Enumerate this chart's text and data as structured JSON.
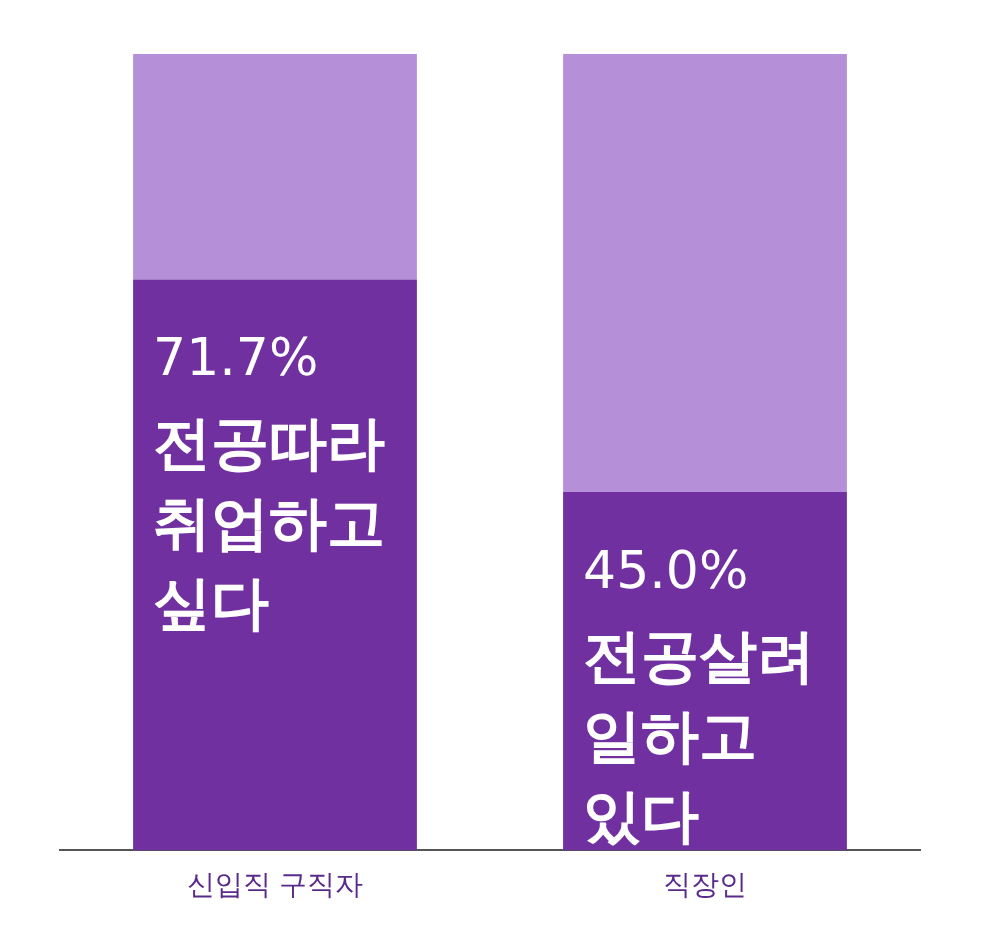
{
  "chart_data": {
    "type": "bar",
    "stacked": true,
    "categories": [
      "신입직 구직자",
      "직장인"
    ],
    "ylim": [
      0,
      100
    ],
    "legend": false,
    "grid": false,
    "series": [
      {
        "color": "#7030a0",
        "values": [
          71.7,
          45.0
        ],
        "value_labels": [
          "71.7%",
          "45.0%"
        ]
      },
      {
        "color": "#b58fd8",
        "values": [
          28.3,
          55.0
        ]
      }
    ],
    "annotations": [
      "전공따라 취업하고 싶다",
      "전공살려 일하고 있다"
    ]
  }
}
